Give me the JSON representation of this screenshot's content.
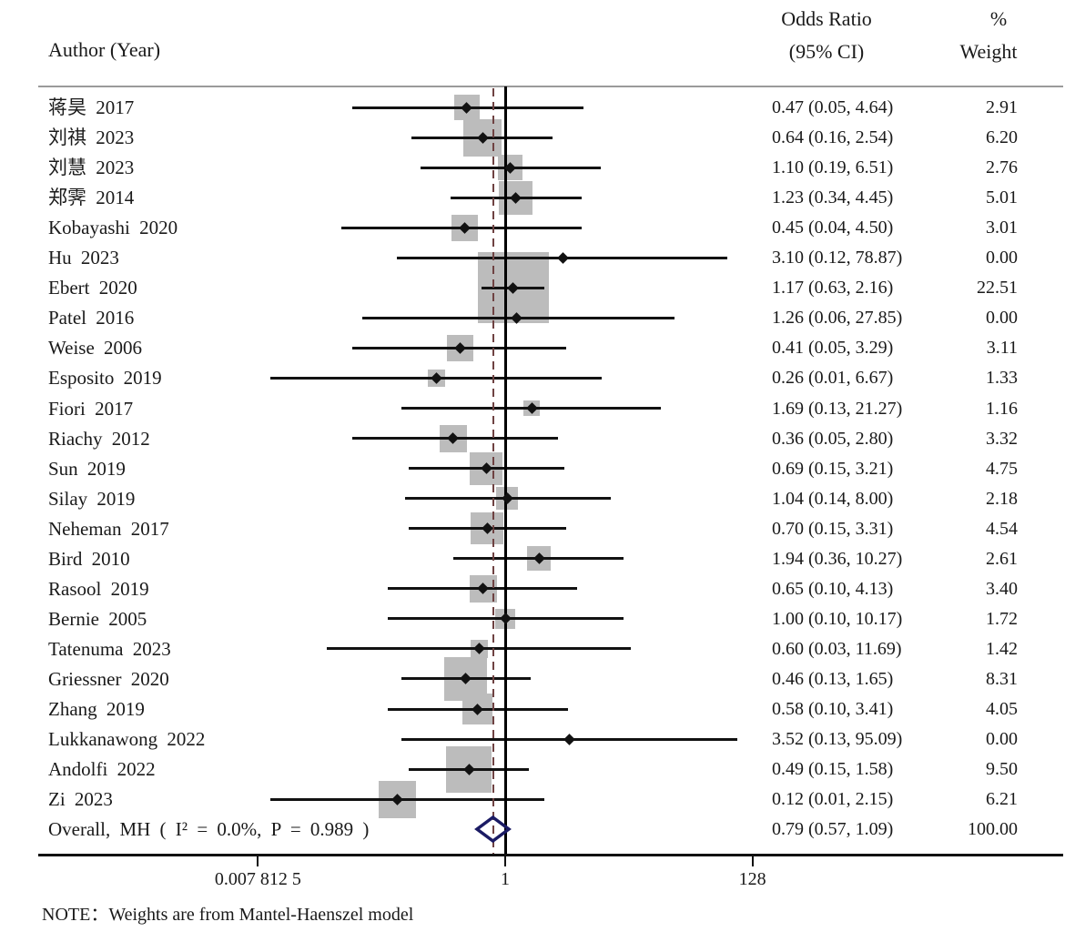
{
  "columns": {
    "author": "Author (Year)",
    "or_line1": "Odds Ratio",
    "or_line2": "(95% CI)",
    "weight_line1": "%",
    "weight_line2": "Weight"
  },
  "note": "NOTE：Weights are from Mantel-Haenszel model",
  "colors": {
    "text": "#1a1a1a",
    "ci_line": "#121212",
    "weight_square": "#bcbcbc",
    "null_line": "#000000",
    "overall_dashed_line": "#6f4242",
    "overall_diamond": "#1b1b64",
    "header_rule": "#9a9a9a",
    "axis_line": "#111111"
  },
  "chart_data": {
    "type": "forest",
    "effect_measure": "Odds Ratio",
    "model": "Mantel-Haenszel",
    "x_axis": {
      "scale": "log2",
      "range": [
        0.0078125,
        128
      ],
      "null_value": 1,
      "ticks": [
        {
          "value": 0.0078125,
          "label": "0.007 812 5"
        },
        {
          "value": 1,
          "label": "1"
        },
        {
          "value": 128,
          "label": "128"
        }
      ]
    },
    "studies": [
      {
        "label": "蒋昊 2017",
        "or": 0.47,
        "lo": 0.05,
        "hi": 4.64,
        "or_ci": "0.47 (0.05, 4.64)",
        "weight": 2.91,
        "weight_label": "2.91"
      },
      {
        "label": "刘祺 2023",
        "or": 0.64,
        "lo": 0.16,
        "hi": 2.54,
        "or_ci": "0.64 (0.16, 2.54)",
        "weight": 6.2,
        "weight_label": "6.20"
      },
      {
        "label": "刘慧 2023",
        "or": 1.1,
        "lo": 0.19,
        "hi": 6.51,
        "or_ci": "1.10 (0.19, 6.51)",
        "weight": 2.76,
        "weight_label": "2.76"
      },
      {
        "label": "郑霁 2014",
        "or": 1.23,
        "lo": 0.34,
        "hi": 4.45,
        "or_ci": "1.23 (0.34, 4.45)",
        "weight": 5.01,
        "weight_label": "5.01"
      },
      {
        "label": "Kobayashi 2020",
        "or": 0.45,
        "lo": 0.04,
        "hi": 4.5,
        "or_ci": "0.45 (0.04, 4.50)",
        "weight": 3.01,
        "weight_label": "3.01"
      },
      {
        "label": "Hu 2023",
        "or": 3.1,
        "lo": 0.12,
        "hi": 78.87,
        "or_ci": "3.10 (0.12, 78.87)",
        "weight": 0.0,
        "weight_label": "0.00"
      },
      {
        "label": "Ebert 2020",
        "or": 1.17,
        "lo": 0.63,
        "hi": 2.16,
        "or_ci": "1.17 (0.63, 2.16)",
        "weight": 22.51,
        "weight_label": "22.51"
      },
      {
        "label": "Patel 2016",
        "or": 1.26,
        "lo": 0.06,
        "hi": 27.85,
        "or_ci": "1.26 (0.06, 27.85)",
        "weight": 0.0,
        "weight_label": "0.00"
      },
      {
        "label": "Weise 2006",
        "or": 0.41,
        "lo": 0.05,
        "hi": 3.29,
        "or_ci": "0.41 (0.05, 3.29)",
        "weight": 3.11,
        "weight_label": "3.11"
      },
      {
        "label": "Esposito 2019",
        "or": 0.26,
        "lo": 0.01,
        "hi": 6.67,
        "or_ci": "0.26 (0.01, 6.67)",
        "weight": 1.33,
        "weight_label": "1.33"
      },
      {
        "label": "Fiori 2017",
        "or": 1.69,
        "lo": 0.13,
        "hi": 21.27,
        "or_ci": "1.69 (0.13, 21.27)",
        "weight": 1.16,
        "weight_label": "1.16"
      },
      {
        "label": "Riachy 2012",
        "or": 0.36,
        "lo": 0.05,
        "hi": 2.8,
        "or_ci": "0.36 (0.05, 2.80)",
        "weight": 3.32,
        "weight_label": "3.32"
      },
      {
        "label": "Sun 2019",
        "or": 0.69,
        "lo": 0.15,
        "hi": 3.21,
        "or_ci": "0.69 (0.15, 3.21)",
        "weight": 4.75,
        "weight_label": "4.75"
      },
      {
        "label": "Silay 2019",
        "or": 1.04,
        "lo": 0.14,
        "hi": 8.0,
        "or_ci": "1.04 (0.14, 8.00)",
        "weight": 2.18,
        "weight_label": "2.18"
      },
      {
        "label": "Neheman 2017",
        "or": 0.7,
        "lo": 0.15,
        "hi": 3.31,
        "or_ci": "0.70 (0.15, 3.31)",
        "weight": 4.54,
        "weight_label": "4.54"
      },
      {
        "label": "Bird 2010",
        "or": 1.94,
        "lo": 0.36,
        "hi": 10.27,
        "or_ci": "1.94 (0.36, 10.27)",
        "weight": 2.61,
        "weight_label": "2.61"
      },
      {
        "label": "Rasool 2019",
        "or": 0.65,
        "lo": 0.1,
        "hi": 4.13,
        "or_ci": "0.65 (0.10, 4.13)",
        "weight": 3.4,
        "weight_label": "3.40"
      },
      {
        "label": "Bernie 2005",
        "or": 1.0,
        "lo": 0.1,
        "hi": 10.17,
        "or_ci": "1.00 (0.10, 10.17)",
        "weight": 1.72,
        "weight_label": "1.72"
      },
      {
        "label": "Tatenuma 2023",
        "or": 0.6,
        "lo": 0.03,
        "hi": 11.69,
        "or_ci": "0.60 (0.03, 11.69)",
        "weight": 1.42,
        "weight_label": "1.42"
      },
      {
        "label": "Griessner 2020",
        "or": 0.46,
        "lo": 0.13,
        "hi": 1.65,
        "or_ci": "0.46 (0.13, 1.65)",
        "weight": 8.31,
        "weight_label": "8.31"
      },
      {
        "label": "Zhang 2019",
        "or": 0.58,
        "lo": 0.1,
        "hi": 3.41,
        "or_ci": "0.58 (0.10, 3.41)",
        "weight": 4.05,
        "weight_label": "4.05"
      },
      {
        "label": "Lukkanawong 2022",
        "or": 3.52,
        "lo": 0.13,
        "hi": 95.09,
        "or_ci": "3.52 (0.13, 95.09)",
        "weight": 0.0,
        "weight_label": "0.00"
      },
      {
        "label": "Andolfi 2022",
        "or": 0.49,
        "lo": 0.15,
        "hi": 1.58,
        "or_ci": "0.49 (0.15, 1.58)",
        "weight": 9.5,
        "weight_label": "9.50"
      },
      {
        "label": "Zi 2023",
        "or": 0.12,
        "lo": 0.01,
        "hi": 2.15,
        "or_ci": "0.12 (0.01, 2.15)",
        "weight": 6.21,
        "weight_label": "6.21"
      }
    ],
    "overall": {
      "label": "Overall, MH ( I² = 0.0%, P = 0.989 )",
      "or": 0.79,
      "lo": 0.57,
      "hi": 1.09,
      "or_ci": "0.79 (0.57, 1.09)",
      "weight": 100.0,
      "weight_label": "100.00"
    }
  }
}
